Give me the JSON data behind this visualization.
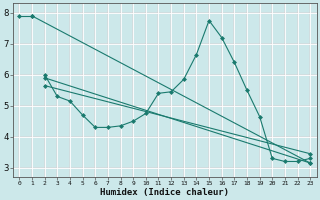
{
  "xlabel": "Humidex (Indice chaleur)",
  "background_color": "#cce8ea",
  "line_color": "#1a7a6e",
  "grid_color": "#b0d8dc",
  "ylim": [
    2.7,
    8.3
  ],
  "xlim": [
    -0.5,
    23.5
  ],
  "series": [
    {
      "x": [
        0,
        1
      ],
      "y": [
        7.9,
        7.9
      ]
    },
    {
      "x": [
        2,
        3,
        4,
        5,
        6,
        7,
        8,
        9,
        10,
        11,
        12,
        13,
        14,
        15,
        16,
        17,
        18,
        19,
        20,
        21,
        22,
        23
      ],
      "y": [
        6.0,
        5.3,
        5.15,
        4.7,
        4.3,
        4.3,
        4.35,
        4.5,
        4.75,
        5.4,
        5.45,
        5.85,
        6.65,
        7.75,
        7.2,
        6.4,
        5.5,
        4.65,
        3.3,
        3.2,
        3.2,
        3.3
      ]
    },
    {
      "x": [
        1,
        23
      ],
      "y": [
        7.9,
        3.15
      ]
    },
    {
      "x": [
        2,
        23
      ],
      "y": [
        5.9,
        3.15
      ]
    },
    {
      "x": [
        2,
        23
      ],
      "y": [
        5.65,
        3.45
      ]
    }
  ],
  "yticks": [
    3,
    4,
    5,
    6,
    7,
    8
  ],
  "xtick_labels": [
    "0",
    "1",
    "2",
    "3",
    "4",
    "5",
    "6",
    "7",
    "8",
    "9",
    "10",
    "11",
    "12",
    "13",
    "14",
    "15",
    "16",
    "17",
    "18",
    "19",
    "20",
    "21",
    "22",
    "23"
  ]
}
